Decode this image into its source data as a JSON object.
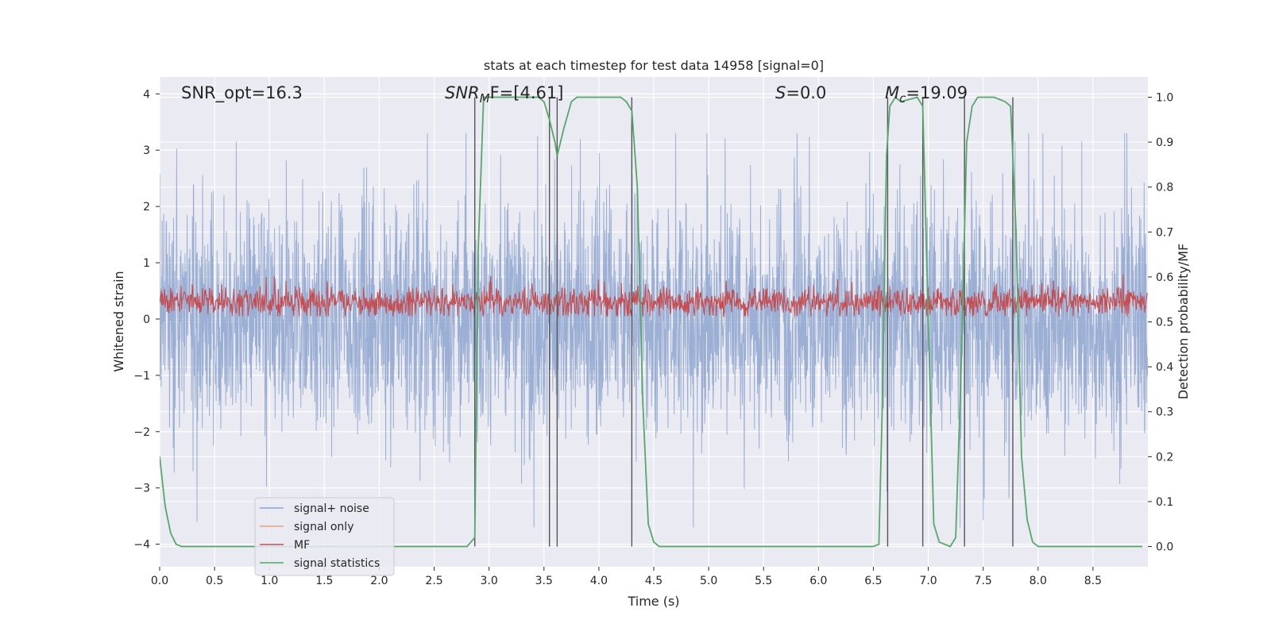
{
  "chart_data": {
    "type": "line",
    "title": "stats at each timestep for test data 14958 [signal=0]",
    "xlabel": "Time (s)",
    "ylabel": "Whitened strain",
    "ylabel_right": "Detection probability/MF",
    "xlim": [
      0,
      9
    ],
    "ylim": [
      -4.4,
      4.3
    ],
    "ylim_right": [
      -0.045,
      1.045
    ],
    "x_ticks": [
      0.0,
      0.5,
      1.0,
      1.5,
      2.0,
      2.5,
      3.0,
      3.5,
      4.0,
      4.5,
      5.0,
      5.5,
      6.0,
      6.5,
      7.0,
      7.5,
      8.0,
      8.5
    ],
    "x_tick_labels": [
      "0.0",
      "0.5",
      "1.0",
      "1.5",
      "2.0",
      "2.5",
      "3.0",
      "3.5",
      "4.0",
      "4.5",
      "5.0",
      "5.5",
      "6.0",
      "6.5",
      "7.0",
      "7.5",
      "8.0",
      "8.5"
    ],
    "y_ticks": [
      -4,
      -3,
      -2,
      -1,
      0,
      1,
      2,
      3,
      4
    ],
    "y_tick_labels": [
      "−4",
      "−3",
      "−2",
      "−1",
      "0",
      "1",
      "2",
      "3",
      "4"
    ],
    "y2_ticks": [
      0.0,
      0.1,
      0.2,
      0.3,
      0.4,
      0.5,
      0.6,
      0.7,
      0.8,
      0.9,
      1.0
    ],
    "y2_tick_labels": [
      "0.0",
      "0.1",
      "0.2",
      "0.3",
      "0.4",
      "0.5",
      "0.6",
      "0.7",
      "0.8",
      "0.9",
      "1.0"
    ],
    "annotations": {
      "snr_opt": "SNR_opt=16.3",
      "snr_mf_sym": "SNR",
      "snr_mf_sub": "M",
      "snr_mf_rest": "F=[4.61]",
      "s_sym": "S",
      "s_rest": "=0.0",
      "mc_sym": "M",
      "mc_sub": "c",
      "mc_rest": "=19.09"
    },
    "legend": {
      "position": "lower-left",
      "entries": [
        "signal+ noise",
        "signal only",
        "MF",
        "signal statistics"
      ]
    },
    "colors": {
      "noise": "#8da4cf",
      "signal_only": "#e8a07f",
      "mf": "#c44e52",
      "stat": "#55a868",
      "vline": "#555555",
      "plot_bg": "#eaeaf2",
      "grid": "#ffffff"
    },
    "series": [
      {
        "name": "signal statistics",
        "axis": "right",
        "x": [
          0.0,
          0.05,
          0.1,
          0.15,
          0.2,
          0.3,
          0.5,
          1.0,
          1.5,
          2.0,
          2.5,
          2.8,
          2.87,
          2.9,
          2.95,
          3.0,
          3.3,
          3.45,
          3.5,
          3.55,
          3.6,
          3.62,
          3.68,
          3.75,
          3.8,
          4.0,
          4.2,
          4.25,
          4.3,
          4.35,
          4.4,
          4.45,
          4.5,
          4.55,
          4.6,
          4.7,
          5.0,
          5.5,
          6.0,
          6.5,
          6.55,
          6.58,
          6.62,
          6.65,
          6.7,
          6.75,
          6.9,
          6.95,
          7.0,
          7.05,
          7.1,
          7.2,
          7.25,
          7.3,
          7.35,
          7.4,
          7.45,
          7.6,
          7.7,
          7.75,
          7.8,
          7.85,
          7.9,
          7.95,
          8.0,
          8.5,
          8.95
        ],
        "values": [
          0.2,
          0.09,
          0.03,
          0.005,
          0.0,
          0.0,
          0.0,
          0.0,
          0.0,
          0.0,
          0.0,
          0.0,
          0.02,
          0.65,
          1.0,
          1.0,
          1.0,
          1.0,
          0.99,
          0.95,
          0.9,
          0.87,
          0.93,
          0.99,
          1.0,
          1.0,
          1.0,
          0.99,
          0.97,
          0.8,
          0.32,
          0.05,
          0.01,
          0.0,
          0.0,
          0.0,
          0.0,
          0.0,
          0.0,
          0.0,
          0.005,
          0.3,
          0.87,
          0.98,
          1.0,
          0.99,
          1.0,
          0.98,
          0.5,
          0.05,
          0.01,
          0.0,
          0.02,
          0.4,
          0.9,
          0.98,
          1.0,
          1.0,
          0.99,
          0.98,
          0.7,
          0.2,
          0.06,
          0.01,
          0.0,
          0.0,
          0.0
        ]
      },
      {
        "name": "signal+ noise",
        "axis": "left",
        "amplitude_range": [
          -3.7,
          3.3
        ]
      },
      {
        "name": "MF",
        "axis": "left",
        "amplitude_range": [
          0.0,
          1.0
        ]
      }
    ],
    "vertical_lines": [
      2.87,
      3.55,
      3.62,
      4.3,
      6.63,
      6.95,
      7.33,
      7.77
    ]
  }
}
